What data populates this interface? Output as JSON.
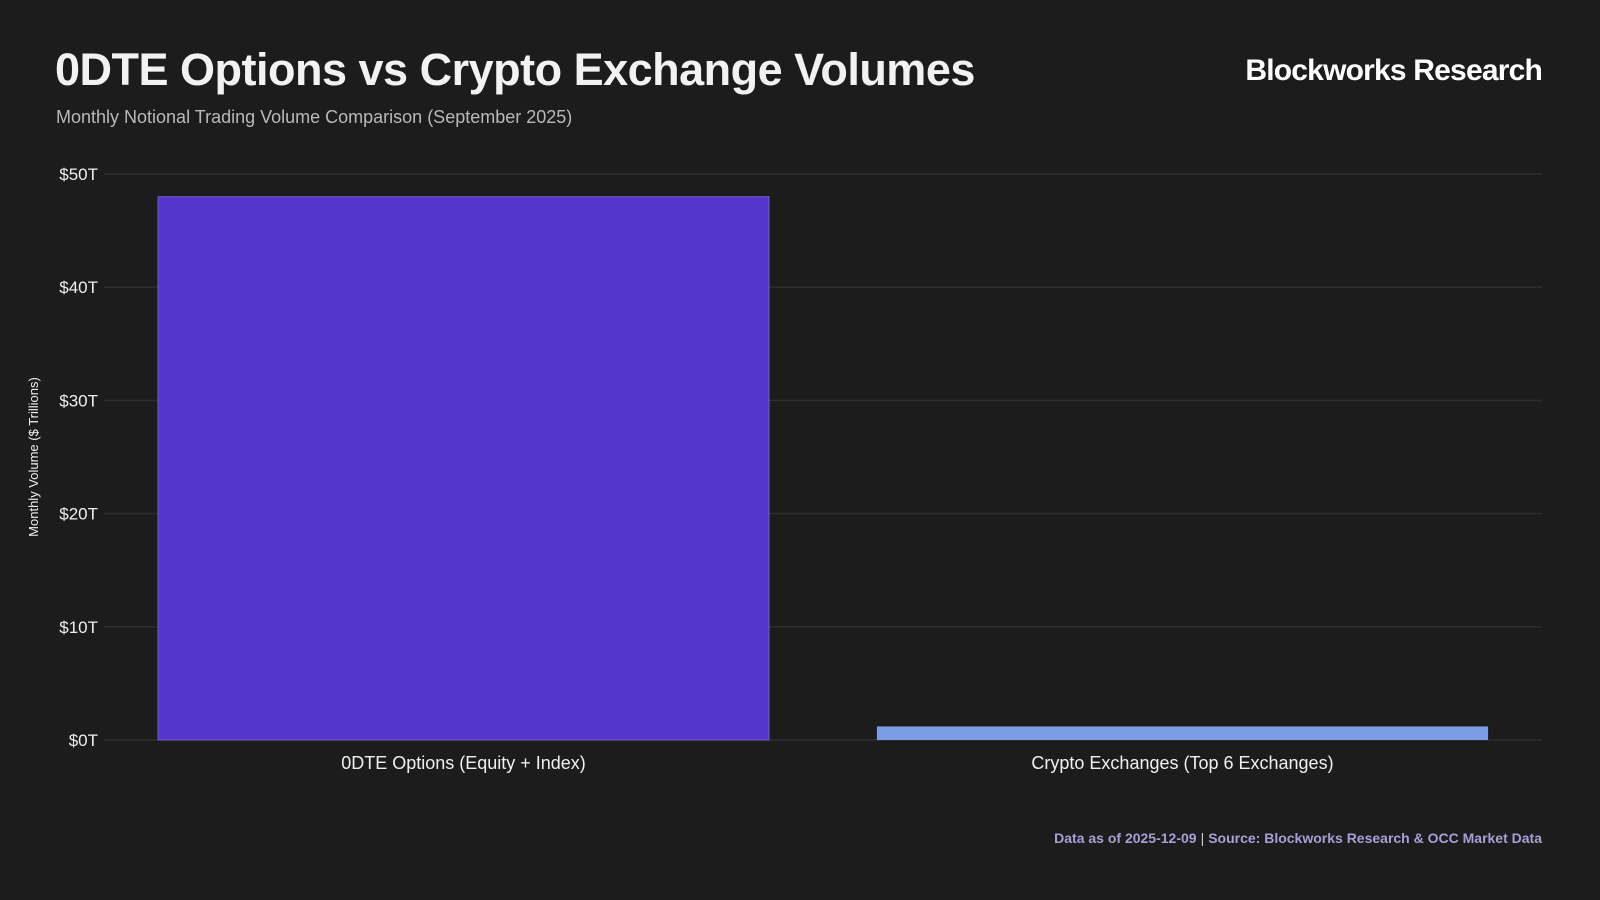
{
  "header": {
    "title": "0DTE Options vs Crypto Exchange Volumes",
    "subtitle": "Monthly Notional Trading Volume Comparison (September 2025)",
    "brand": "Blockworks Research"
  },
  "footer": {
    "date_text": "Data as of 2025-12-09",
    "separator": "|",
    "source_text": "Source: Blockworks Research & OCC Market Data"
  },
  "colors": {
    "background": "#1c1c1d",
    "grid": "#2e2e30",
    "odte_bar": "#5436cc",
    "crypto_bar": "#7b9de8",
    "tick_text": "#f0f0f0"
  },
  "chart_data": {
    "type": "bar",
    "title": "0DTE Options vs Crypto Exchange Volumes",
    "subtitle": "Monthly Notional Trading Volume Comparison (September 2025)",
    "xlabel": "",
    "ylabel": "Monthly Volume ($ Trillions)",
    "categories": [
      "0DTE Options (Equity + Index)",
      "Crypto Exchanges (Top 6 Exchanges)"
    ],
    "values": [
      48.0,
      1.2
    ],
    "bar_colors": [
      "#5436cc",
      "#7b9de8"
    ],
    "ylim": [
      0,
      50
    ],
    "yticks": [
      0,
      10,
      20,
      30,
      40,
      50
    ],
    "ytick_labels": [
      "$0T",
      "$10T",
      "$20T",
      "$30T",
      "$40T",
      "$50T"
    ],
    "grid": true,
    "legend": "none"
  }
}
